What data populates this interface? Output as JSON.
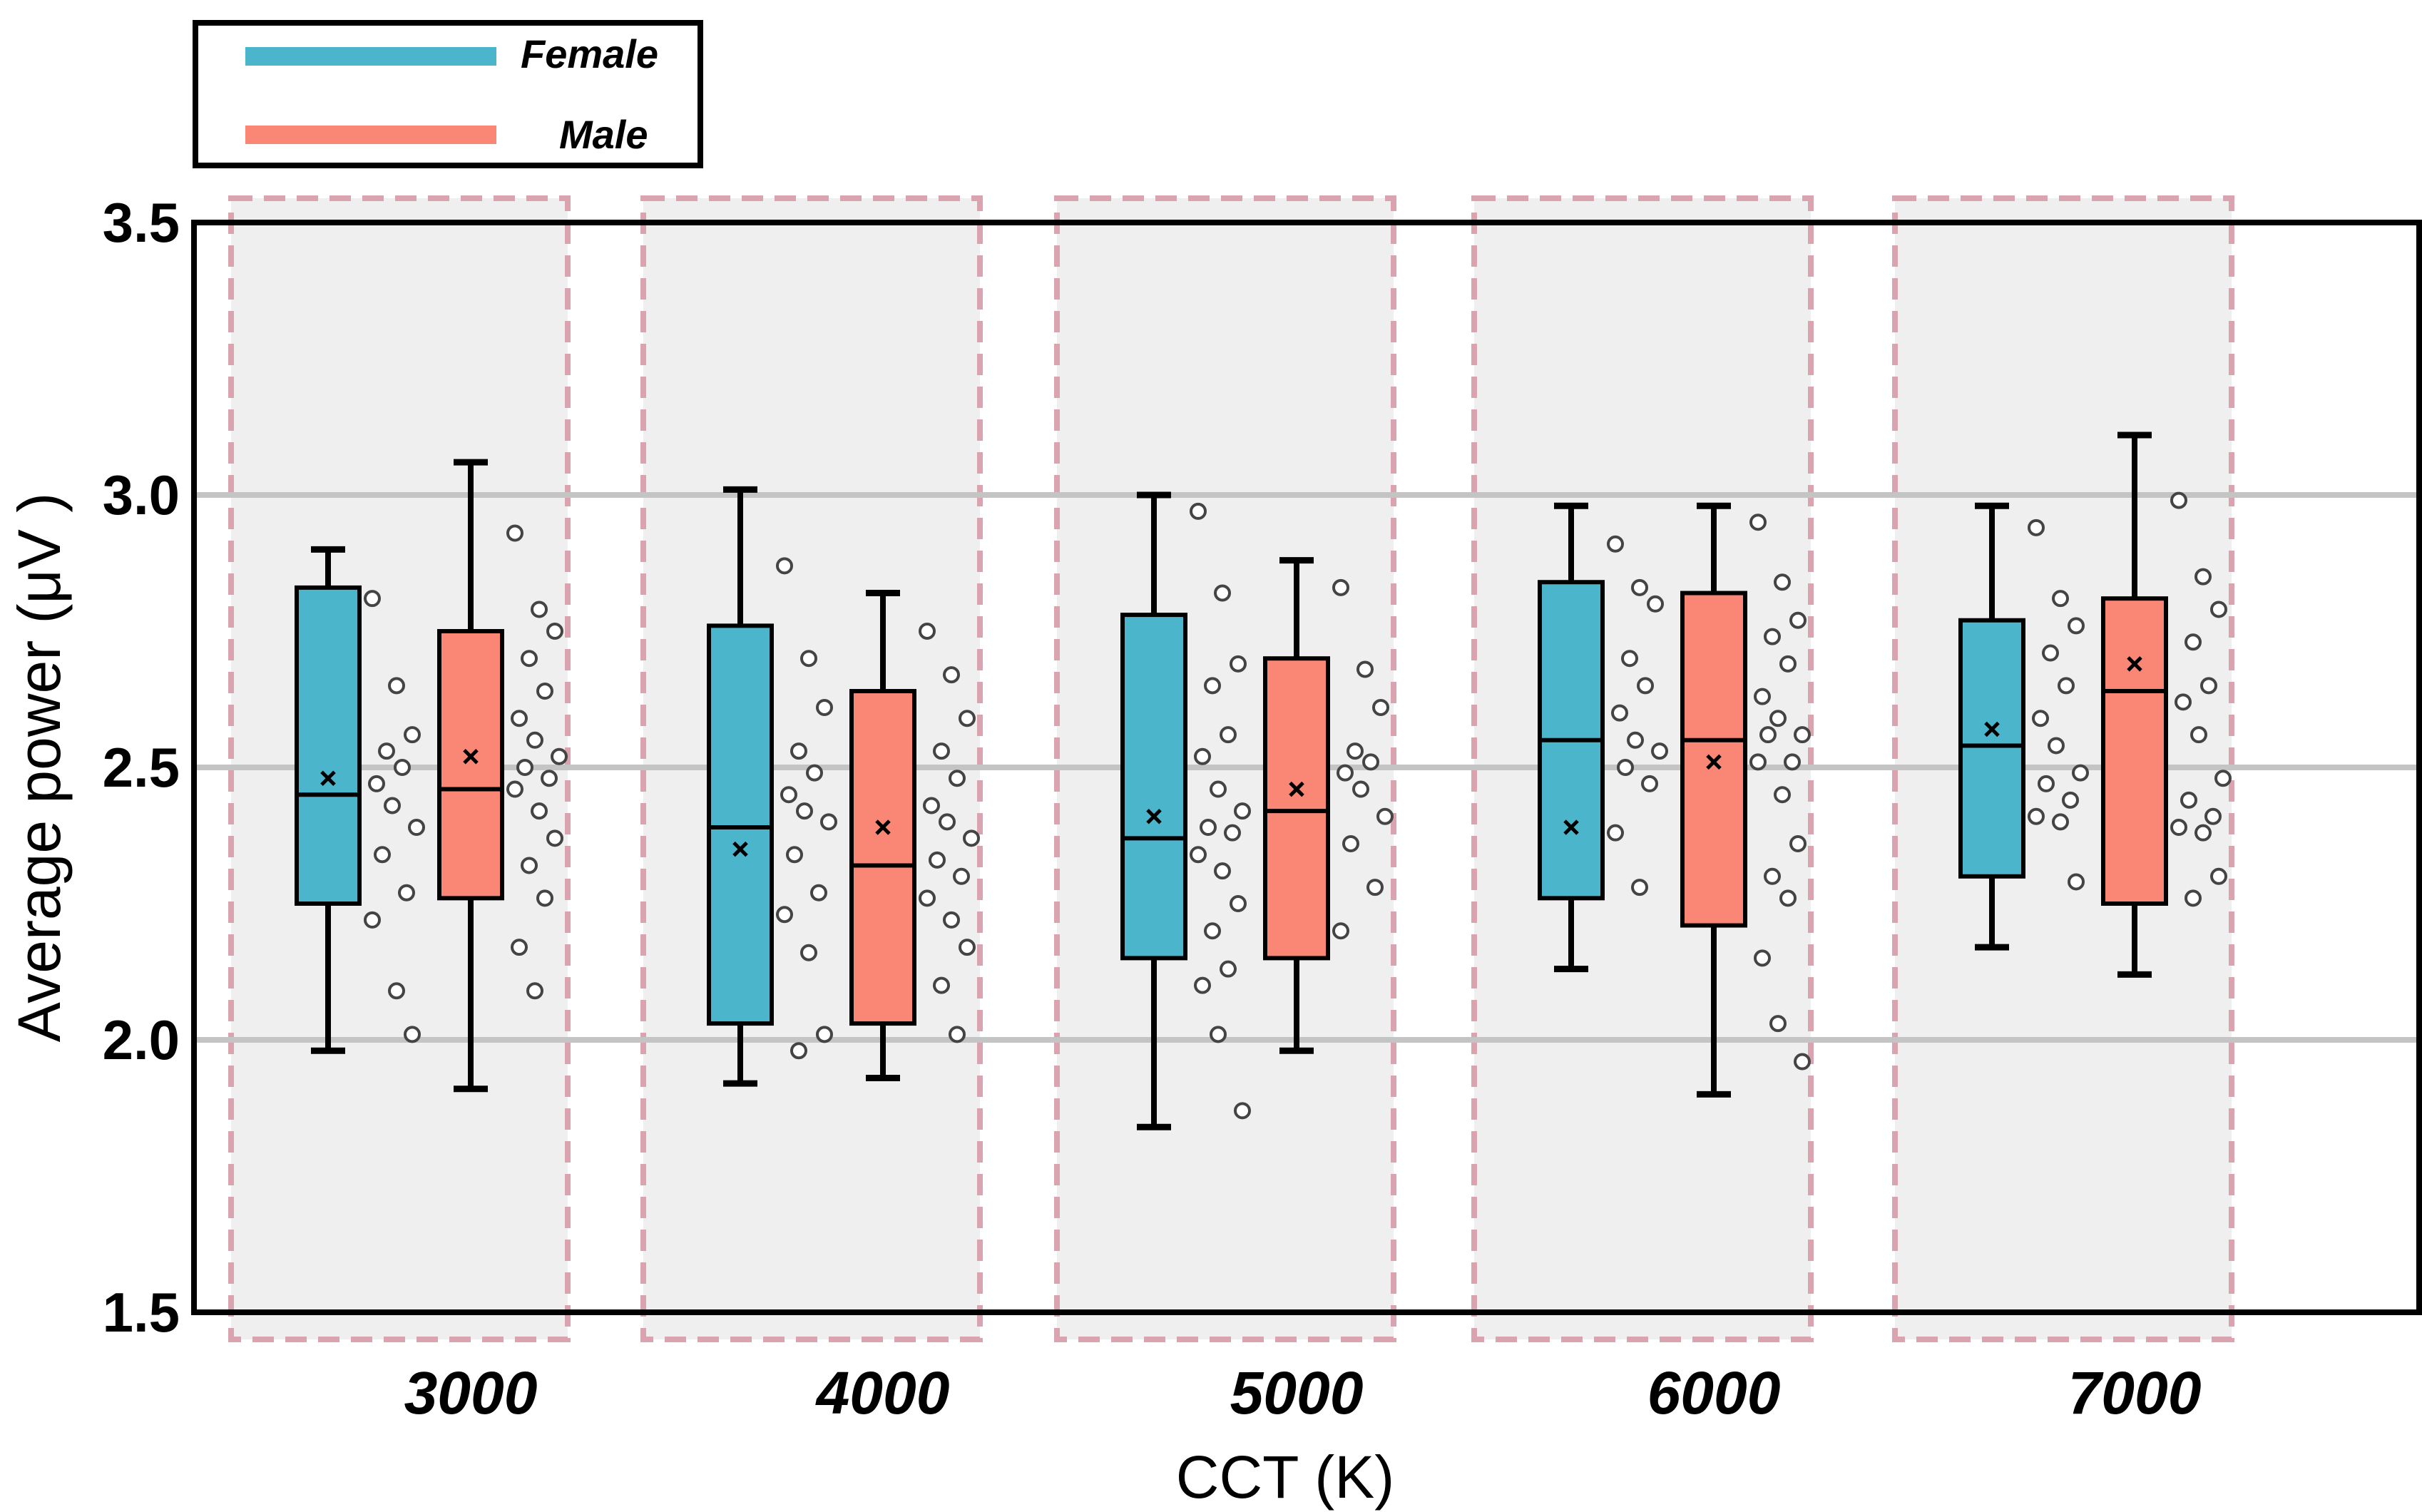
{
  "chart_data": {
    "type": "box",
    "title": "",
    "xlabel": "CCT (K)",
    "ylabel": "Average power (μV )",
    "ylim": [
      1.5,
      3.5
    ],
    "yticks": [
      "1.5",
      "2.0",
      "2.5",
      "3.0",
      "3.5"
    ],
    "ytick_values": [
      1.5,
      2.0,
      2.5,
      3.0,
      3.5
    ],
    "gridlines": [
      2.0,
      2.5,
      3.0
    ],
    "categories": [
      "3000",
      "4000",
      "5000",
      "6000",
      "7000"
    ],
    "legend": {
      "position": "top-left, above plot"
    },
    "series": [
      {
        "name": "Female",
        "color": "#4BB5CB",
        "boxes": [
          {
            "category": "3000",
            "whisker_low": 1.98,
            "q1": 2.25,
            "median": 2.45,
            "q3": 2.83,
            "whisker_high": 2.9,
            "mean": 2.48,
            "points": [
              2.81,
              2.65,
              2.56,
              2.53,
              2.5,
              2.47,
              2.43,
              2.39,
              2.34,
              2.27,
              2.22,
              2.09,
              2.01
            ]
          },
          {
            "category": "4000",
            "whisker_low": 1.92,
            "q1": 2.03,
            "median": 2.39,
            "q3": 2.76,
            "whisker_high": 3.01,
            "mean": 2.35,
            "points": [
              2.87,
              2.7,
              2.61,
              2.53,
              2.49,
              2.45,
              2.42,
              2.4,
              2.34,
              2.27,
              2.23,
              2.16,
              2.01,
              1.98
            ]
          },
          {
            "category": "5000",
            "whisker_low": 1.84,
            "q1": 2.15,
            "median": 2.37,
            "q3": 2.78,
            "whisker_high": 3.0,
            "mean": 2.41,
            "points": [
              2.97,
              2.82,
              2.69,
              2.65,
              2.56,
              2.52,
              2.46,
              2.42,
              2.39,
              2.38,
              2.34,
              2.31,
              2.25,
              2.2,
              2.13,
              2.1,
              2.01,
              1.87
            ]
          },
          {
            "category": "6000",
            "whisker_low": 2.13,
            "q1": 2.26,
            "median": 2.55,
            "q3": 2.84,
            "whisker_high": 2.98,
            "mean": 2.39,
            "points": [
              2.91,
              2.83,
              2.8,
              2.7,
              2.65,
              2.6,
              2.55,
              2.53,
              2.5,
              2.47,
              2.38,
              2.28
            ]
          },
          {
            "category": "7000",
            "whisker_low": 2.17,
            "q1": 2.3,
            "median": 2.54,
            "q3": 2.77,
            "whisker_high": 2.98,
            "mean": 2.57,
            "points": [
              2.94,
              2.81,
              2.76,
              2.71,
              2.65,
              2.59,
              2.54,
              2.49,
              2.47,
              2.44,
              2.41,
              2.4,
              2.29
            ]
          }
        ]
      },
      {
        "name": "Male",
        "color": "#FA8775",
        "boxes": [
          {
            "category": "3000",
            "whisker_low": 1.91,
            "q1": 2.26,
            "median": 2.46,
            "q3": 2.75,
            "whisker_high": 3.06,
            "mean": 2.52,
            "points": [
              2.93,
              2.79,
              2.75,
              2.7,
              2.64,
              2.59,
              2.55,
              2.52,
              2.5,
              2.48,
              2.46,
              2.42,
              2.37,
              2.32,
              2.26,
              2.17,
              2.09
            ]
          },
          {
            "category": "4000",
            "whisker_low": 1.93,
            "q1": 2.03,
            "median": 2.32,
            "q3": 2.64,
            "whisker_high": 2.82,
            "mean": 2.39,
            "points": [
              2.75,
              2.67,
              2.59,
              2.53,
              2.48,
              2.43,
              2.4,
              2.37,
              2.33,
              2.3,
              2.26,
              2.22,
              2.17,
              2.1,
              2.01
            ]
          },
          {
            "category": "5000",
            "whisker_low": 1.98,
            "q1": 2.15,
            "median": 2.42,
            "q3": 2.7,
            "whisker_high": 2.88,
            "mean": 2.46,
            "points": [
              2.83,
              2.68,
              2.61,
              2.53,
              2.51,
              2.49,
              2.46,
              2.41,
              2.36,
              2.28,
              2.2
            ]
          },
          {
            "category": "6000",
            "whisker_low": 1.9,
            "q1": 2.21,
            "median": 2.55,
            "q3": 2.82,
            "whisker_high": 2.98,
            "mean": 2.51,
            "points": [
              2.95,
              2.84,
              2.77,
              2.74,
              2.69,
              2.63,
              2.59,
              2.56,
              2.56,
              2.51,
              2.51,
              2.45,
              2.36,
              2.3,
              2.26,
              2.15,
              2.03,
              1.96
            ]
          },
          {
            "category": "7000",
            "whisker_low": 2.12,
            "q1": 2.25,
            "median": 2.64,
            "q3": 2.81,
            "whisker_high": 3.11,
            "mean": 2.69,
            "points": [
              2.99,
              2.85,
              2.79,
              2.73,
              2.65,
              2.62,
              2.56,
              2.48,
              2.44,
              2.41,
              2.39,
              2.38,
              2.3,
              2.26
            ]
          }
        ]
      }
    ]
  }
}
